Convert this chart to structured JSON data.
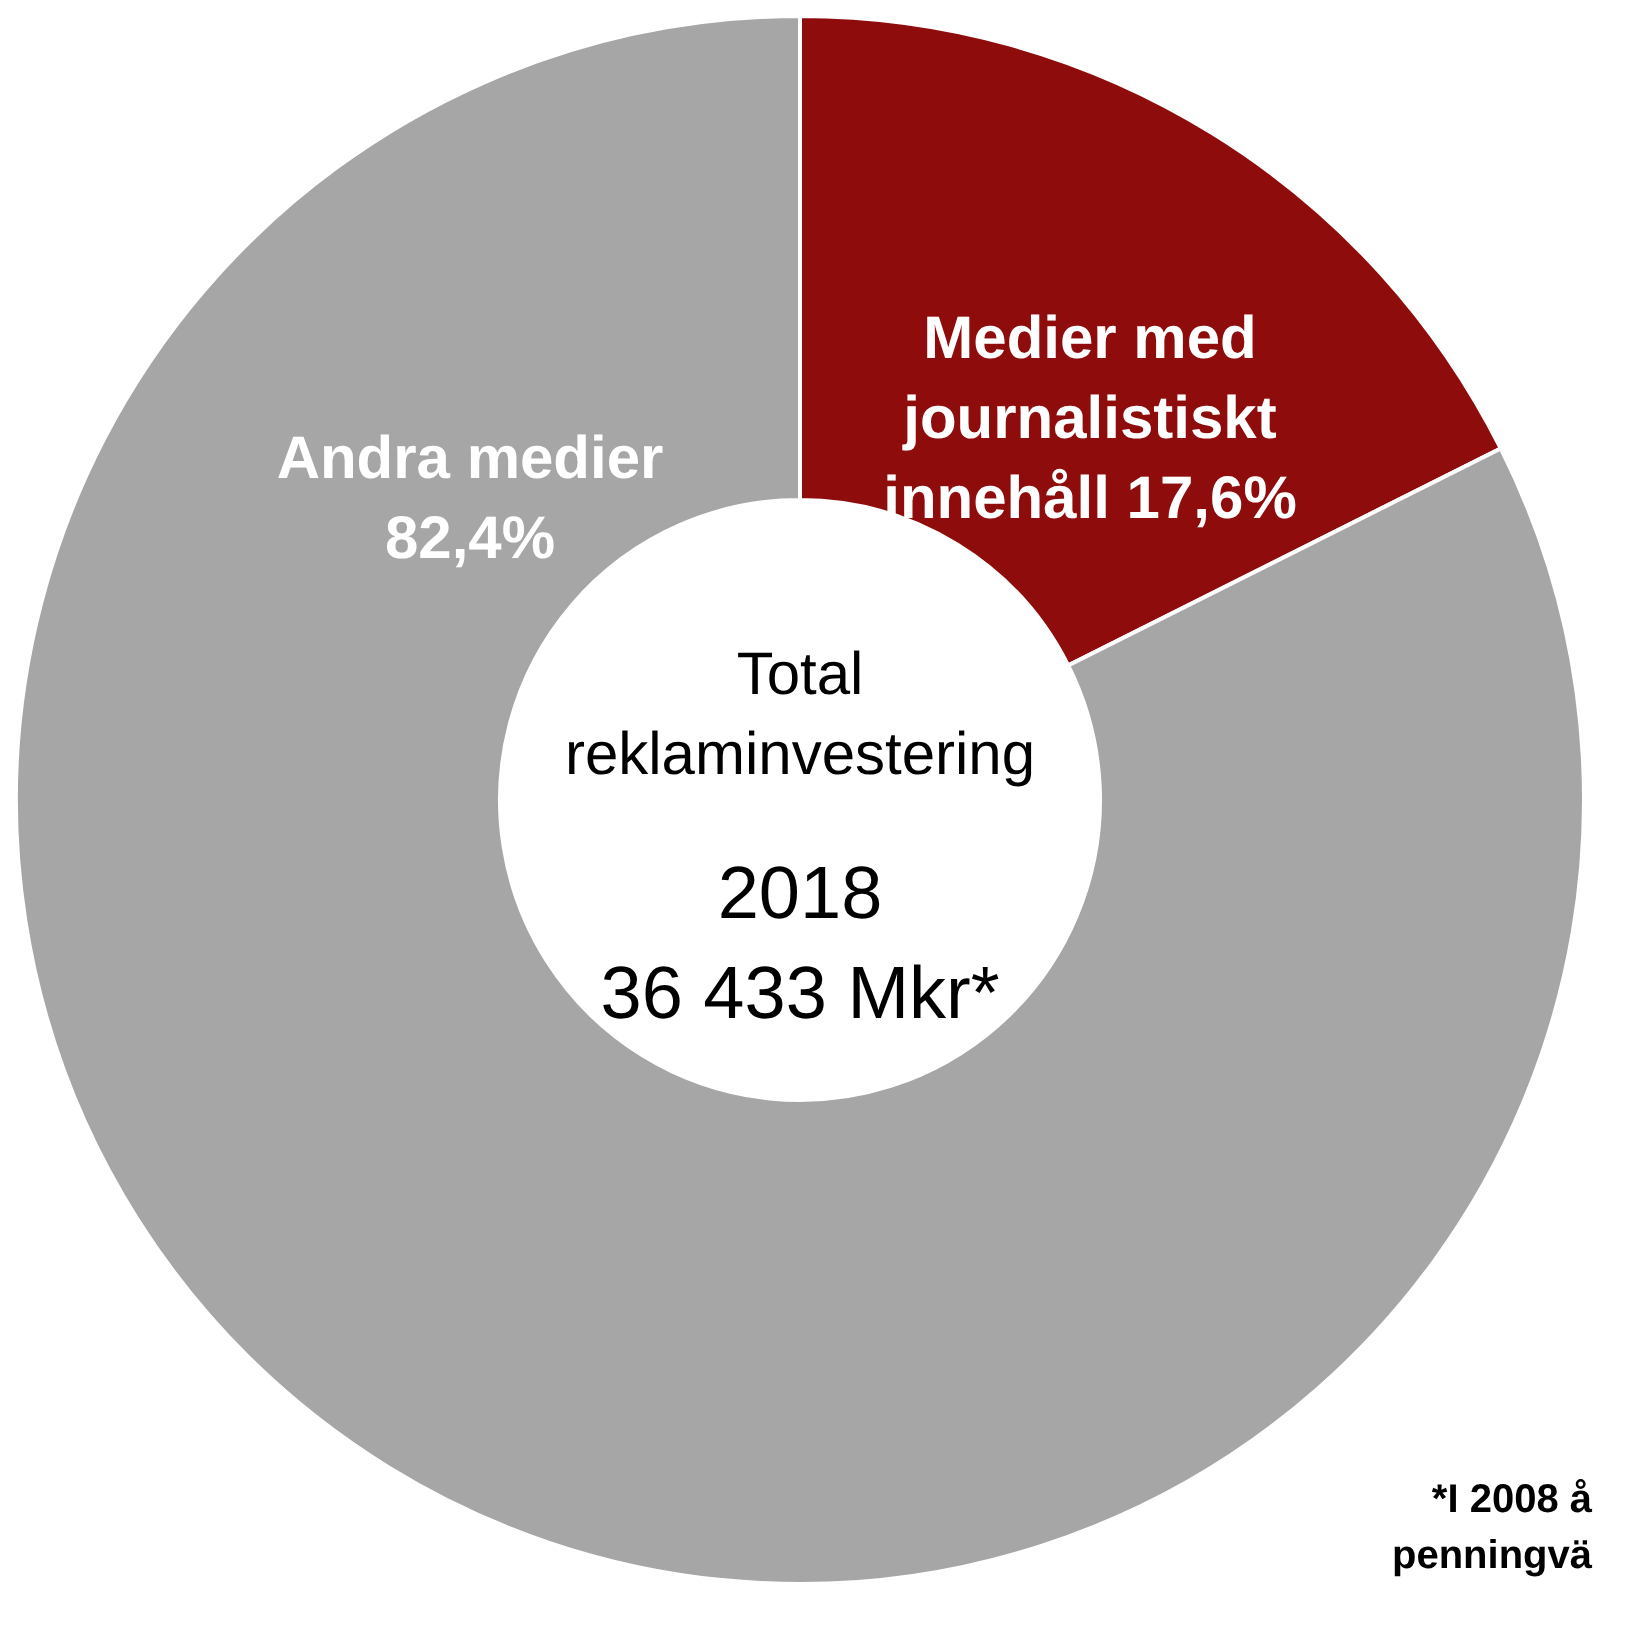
{
  "chart_data": {
    "type": "donut",
    "title": "Total reklaminvestering",
    "subtitle": "2018 36 433 Mkr*",
    "categories": [
      "Medier med journalistiskt innehåll",
      "Andra medier"
    ],
    "values": [
      17.6,
      82.4
    ],
    "value_labels": [
      "17,6%",
      "82,4%"
    ],
    "colors": [
      "#8e0c0c",
      "#a6a6a6"
    ],
    "annotations": [
      "*I 2008 å penningvä"
    ]
  }
}
